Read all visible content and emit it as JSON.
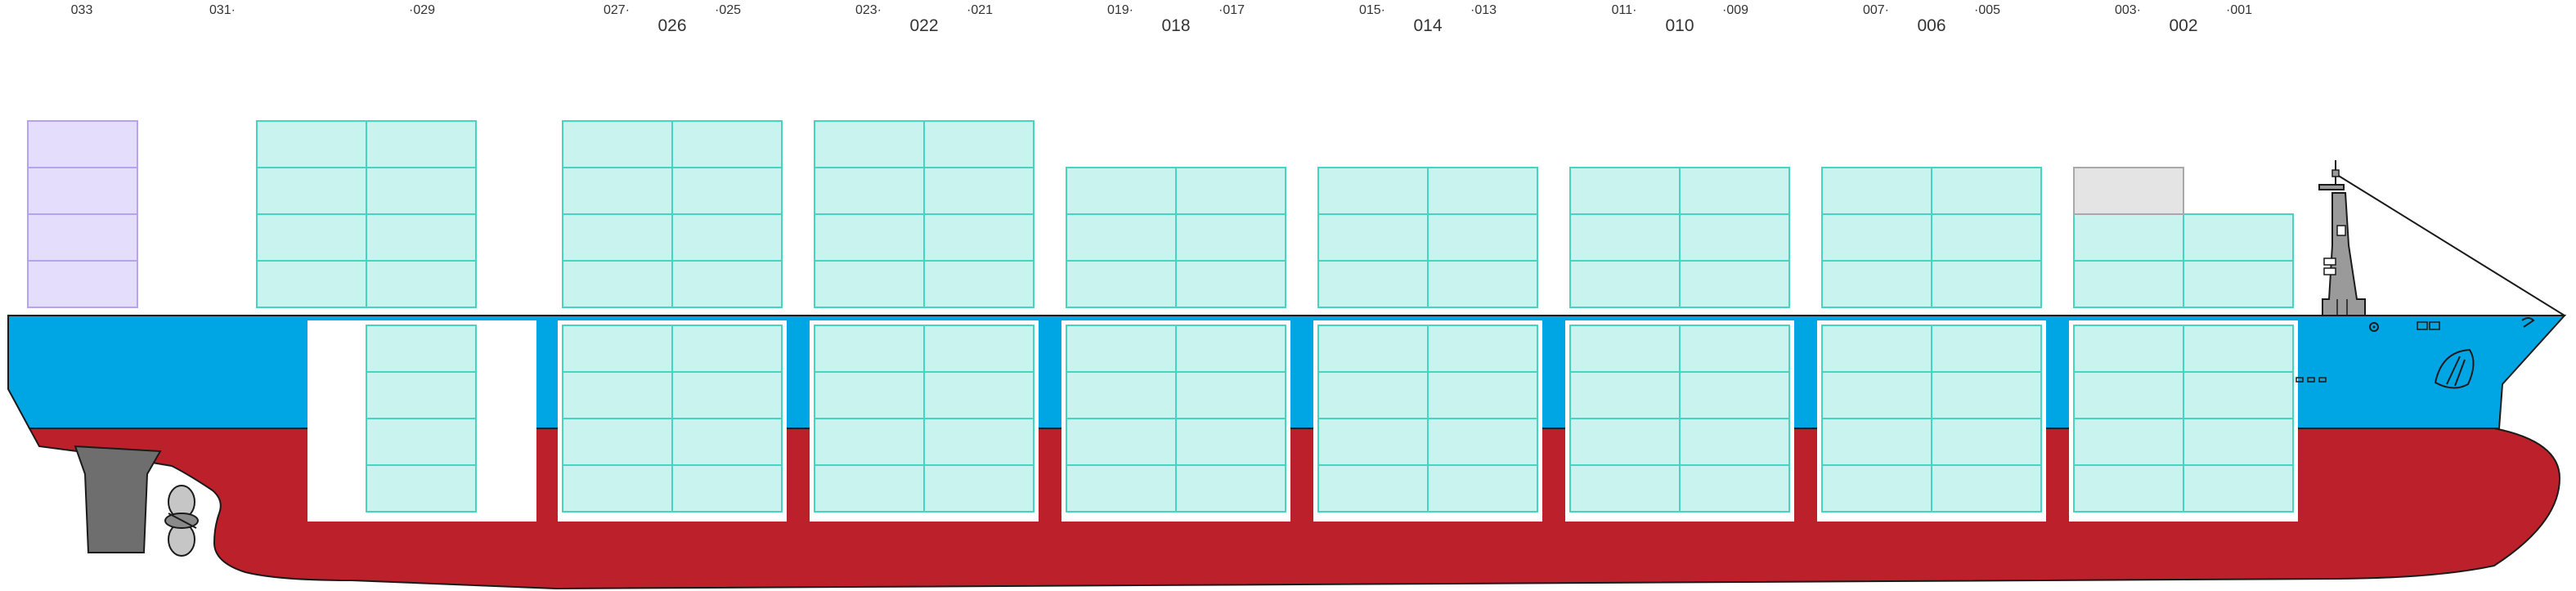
{
  "colors": {
    "hull_blue": "#00a6e4",
    "hull_red": "#bc202b",
    "container_teal_fill": "#c9f3ee",
    "container_teal_stroke": "#46d3c0",
    "container_lilac_fill": "#e5ddfc",
    "container_lilac_stroke": "#b5a3ee",
    "container_grey_fill": "#e4e4e4",
    "container_grey_stroke": "#a8a8a8",
    "hatch_white": "#ffffff",
    "outline": "#1a1a1a"
  },
  "bay_labels": [
    {
      "text": "033",
      "size": "small"
    },
    {
      "text": "031·",
      "size": "small"
    },
    {
      "text": "·029",
      "size": "small"
    },
    {
      "text": "027·",
      "size": "small"
    },
    {
      "text": "026",
      "size": "big"
    },
    {
      "text": "·025",
      "size": "small"
    },
    {
      "text": "023·",
      "size": "small"
    },
    {
      "text": "022",
      "size": "big"
    },
    {
      "text": "·021",
      "size": "small"
    },
    {
      "text": "019·",
      "size": "small"
    },
    {
      "text": "018",
      "size": "big"
    },
    {
      "text": "·017",
      "size": "small"
    },
    {
      "text": "015·",
      "size": "small"
    },
    {
      "text": "014",
      "size": "big"
    },
    {
      "text": "·013",
      "size": "small"
    },
    {
      "text": "011·",
      "size": "small"
    },
    {
      "text": "010",
      "size": "big"
    },
    {
      "text": "·009",
      "size": "small"
    },
    {
      "text": "007·",
      "size": "small"
    },
    {
      "text": "006",
      "size": "big"
    },
    {
      "text": "·005",
      "size": "small"
    },
    {
      "text": "003·",
      "size": "small"
    },
    {
      "text": "002",
      "size": "big"
    },
    {
      "text": "·001",
      "size": "small"
    }
  ],
  "deck_stacks": [
    {
      "bay": "033",
      "columns": 1,
      "tiers": 4,
      "kind": "lilac"
    },
    {
      "bay": "029",
      "columns": 2,
      "tiers": 4,
      "kind": "teal"
    },
    {
      "bay": "026",
      "columns": 2,
      "tiers": 4,
      "kind": "teal"
    },
    {
      "bay": "022",
      "columns": 2,
      "tiers": 4,
      "kind": "teal"
    },
    {
      "bay": "018",
      "columns": 2,
      "tiers": 3,
      "kind": "teal"
    },
    {
      "bay": "014",
      "columns": 2,
      "tiers": 3,
      "kind": "teal"
    },
    {
      "bay": "010",
      "columns": 2,
      "tiers": 3,
      "kind": "teal"
    },
    {
      "bay": "006",
      "columns": 2,
      "tiers": 3,
      "kind": "teal"
    },
    {
      "bay": "002",
      "columns": 2,
      "tiers": 2,
      "kind": "teal",
      "extra_top": "grey"
    }
  ],
  "hold_stacks": [
    {
      "bay": "029",
      "columns": 1,
      "tiers": 4
    },
    {
      "bay": "026",
      "columns": 2,
      "tiers": 4
    },
    {
      "bay": "022",
      "columns": 2,
      "tiers": 4
    },
    {
      "bay": "018",
      "columns": 2,
      "tiers": 4
    },
    {
      "bay": "014",
      "columns": 2,
      "tiers": 4
    },
    {
      "bay": "010",
      "columns": 2,
      "tiers": 4
    },
    {
      "bay": "006",
      "columns": 2,
      "tiers": 4
    },
    {
      "bay": "002",
      "columns": 2,
      "tiers": 4
    }
  ]
}
